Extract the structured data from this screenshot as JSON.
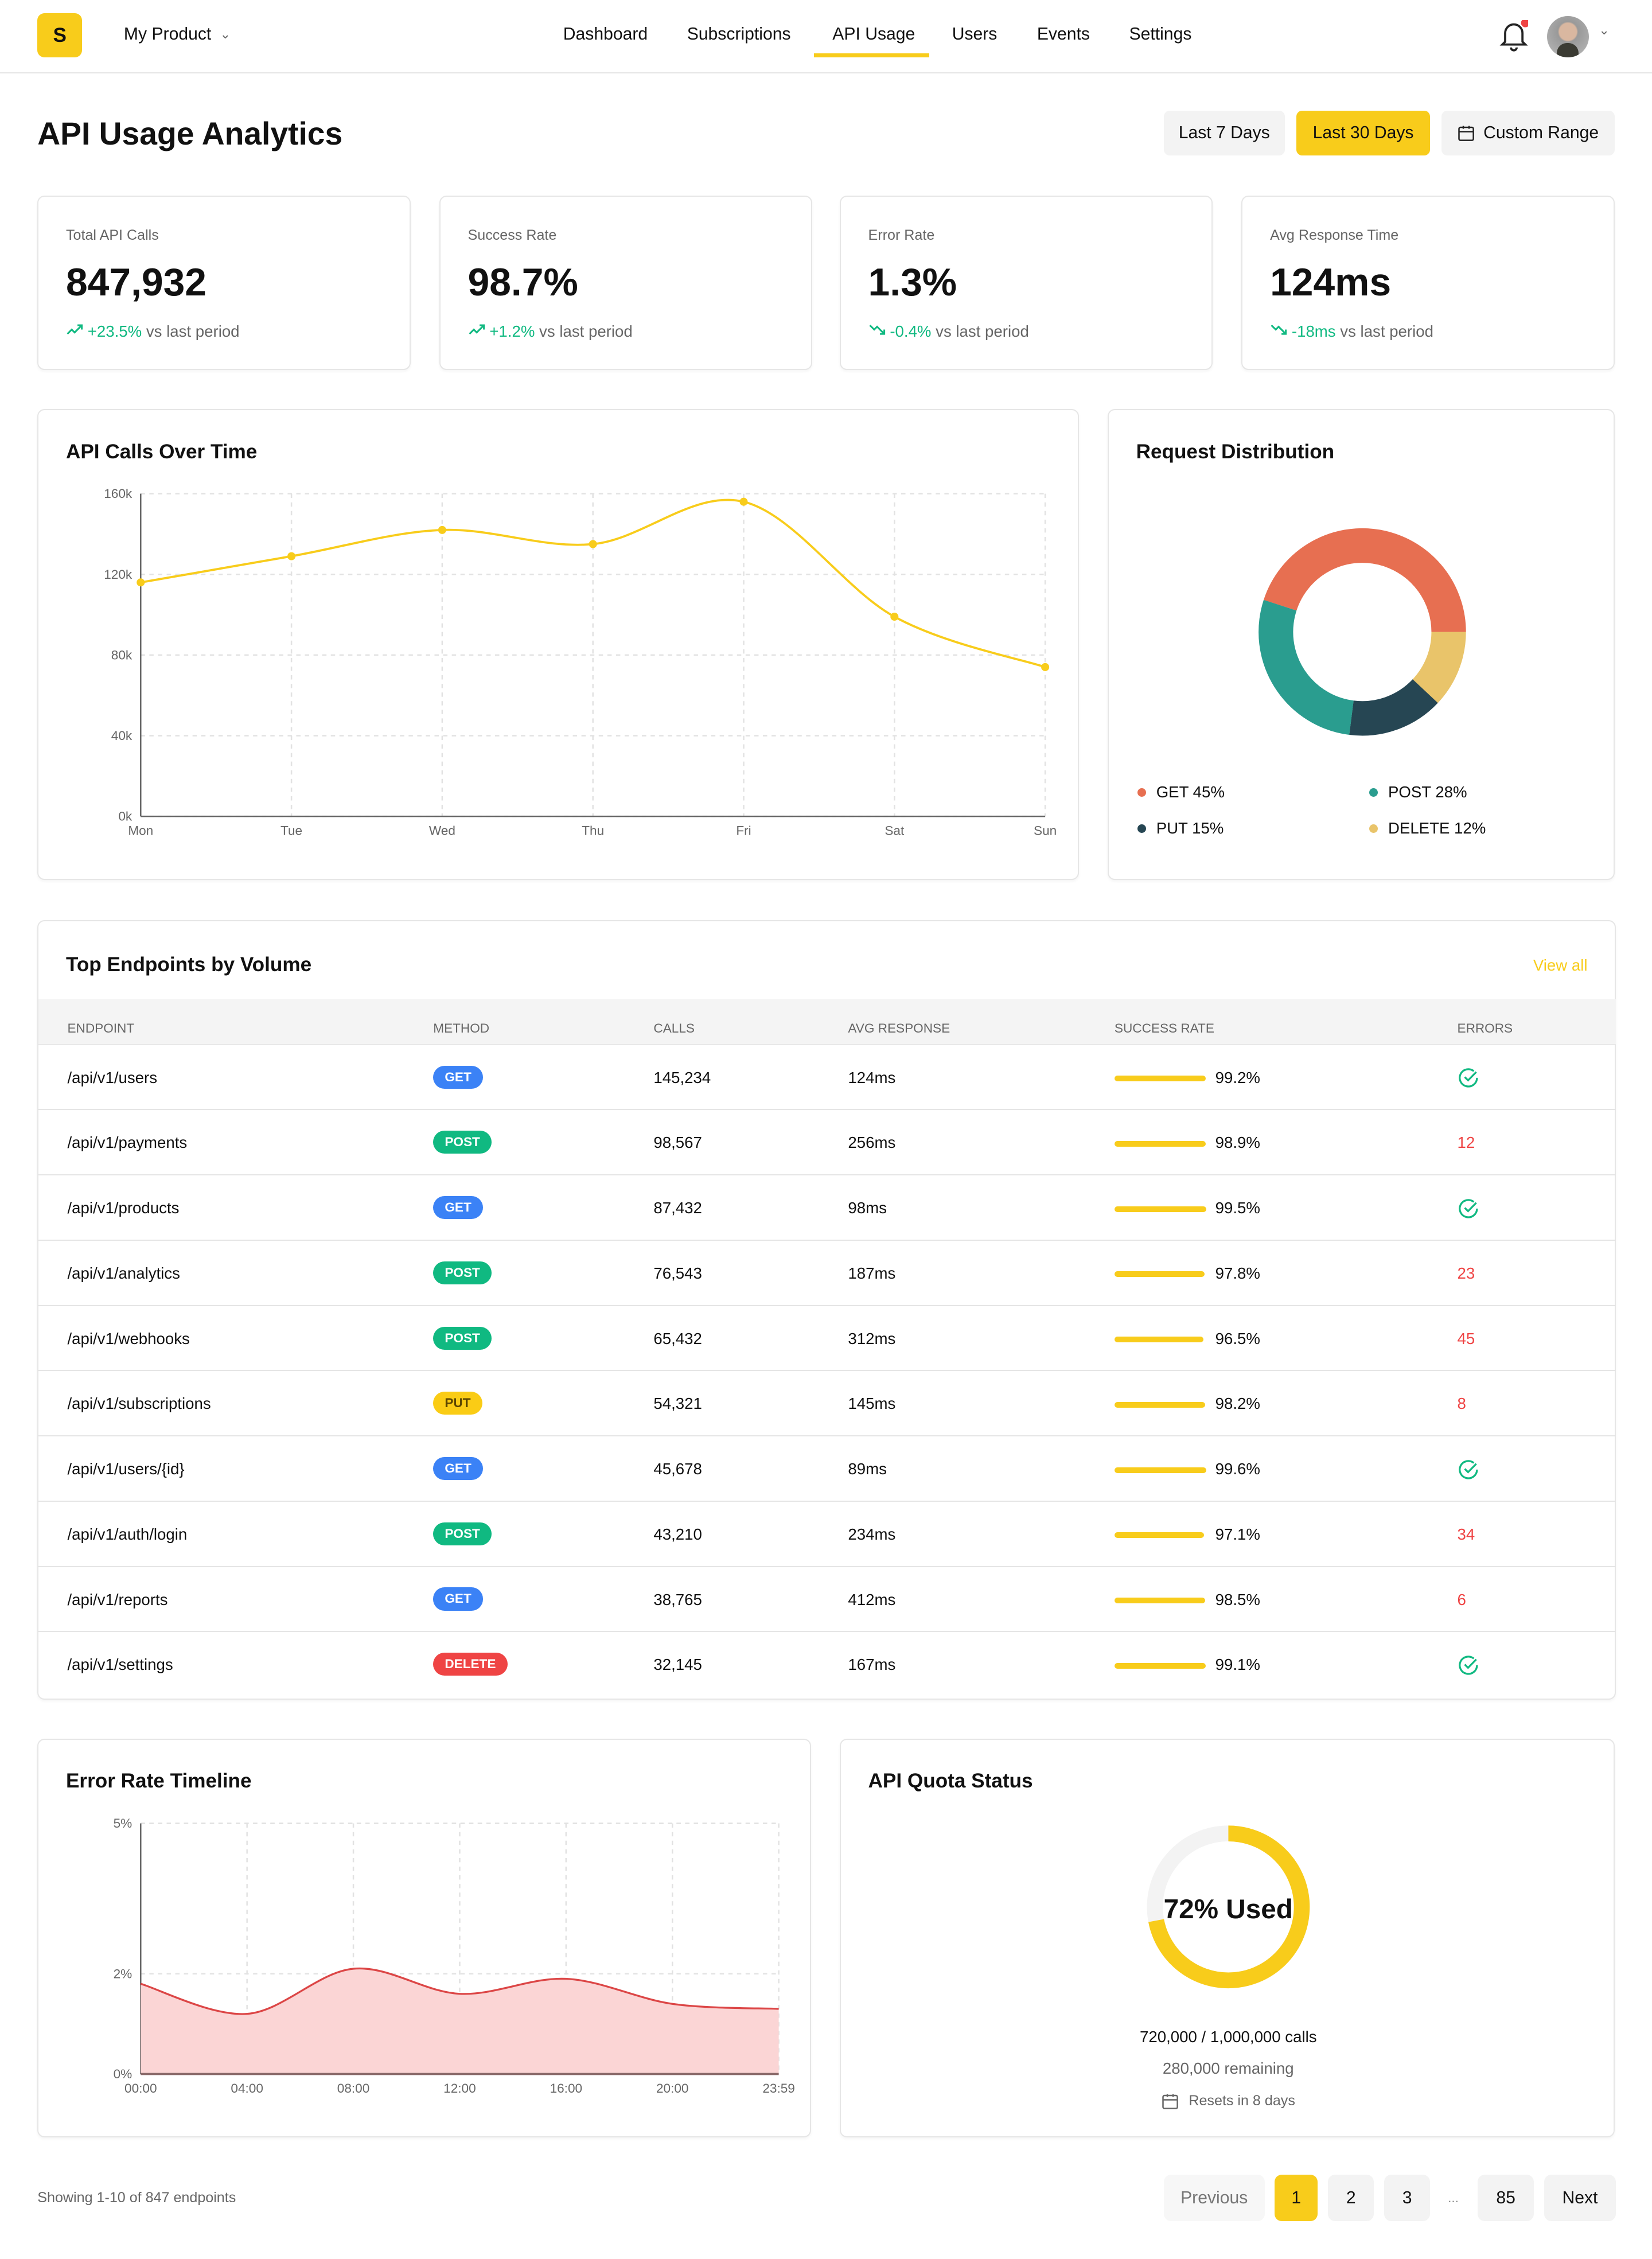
{
  "header": {
    "logo": "S",
    "product": "My Product",
    "nav": [
      "Dashboard",
      "Subscriptions",
      "API Usage",
      "Users",
      "Events",
      "Settings"
    ],
    "active_nav": "API Usage",
    "notification_dot_color": "#ef4444"
  },
  "page": {
    "title": "API Usage Analytics",
    "ranges": [
      "Last 7 Days",
      "Last 30 Days",
      "Custom Range"
    ],
    "active_range": "Last 30 Days"
  },
  "stats": [
    {
      "label": "Total API Calls",
      "value": "847,932",
      "change": "+23.5%",
      "suffix": "vs last period",
      "trend": "up"
    },
    {
      "label": "Success Rate",
      "value": "98.7%",
      "change": "+1.2%",
      "suffix": "vs last period",
      "trend": "up"
    },
    {
      "label": "Error Rate",
      "value": "1.3%",
      "change": "-0.4%",
      "suffix": "vs last period",
      "trend": "down"
    },
    {
      "label": "Avg Response Time",
      "value": "124ms",
      "change": "-18ms",
      "suffix": "vs last period",
      "trend": "down"
    }
  ],
  "chart_data": [
    {
      "type": "line",
      "title": "API Calls Over Time",
      "categories": [
        "Mon",
        "Tue",
        "Wed",
        "Thu",
        "Fri",
        "Sat",
        "Sun"
      ],
      "values": [
        116000,
        129000,
        142000,
        135000,
        156000,
        99000,
        74000
      ],
      "yticks": [
        "0k",
        "40k",
        "80k",
        "120k",
        "160k"
      ],
      "ylim": [
        0,
        160000
      ],
      "grid": true,
      "color": "#f8cc1b"
    },
    {
      "type": "pie",
      "title": "Request Distribution",
      "donut": true,
      "slices": [
        {
          "name": "GET",
          "value": 45,
          "label": "GET 45%",
          "color": "#e76f51"
        },
        {
          "name": "DELETE",
          "value": 12,
          "label": "DELETE 12%",
          "color": "#e9c46a"
        },
        {
          "name": "PUT",
          "value": 15,
          "label": "PUT 15%",
          "color": "#264653"
        },
        {
          "name": "POST",
          "value": 28,
          "label": "POST 28%",
          "color": "#2a9d8f"
        }
      ]
    },
    {
      "type": "area",
      "title": "Error Rate Timeline",
      "categories": [
        "00:00",
        "04:00",
        "08:00",
        "12:00",
        "16:00",
        "20:00",
        "23:59"
      ],
      "values": [
        1.8,
        1.2,
        2.1,
        1.6,
        1.9,
        1.4,
        1.3
      ],
      "yticks": [
        "0%",
        "2%",
        "5%"
      ],
      "ylim": [
        0,
        5
      ],
      "grid": true,
      "color": "#dc4646"
    }
  ],
  "table": {
    "title": "Top Endpoints by Volume",
    "view_all": "View all",
    "columns": [
      "ENDPOINT",
      "METHOD",
      "CALLS",
      "AVG RESPONSE",
      "SUCCESS RATE",
      "ERRORS"
    ],
    "rows": [
      {
        "endpoint": "/api/v1/users",
        "method": "GET",
        "calls": "145,234",
        "avg": "124ms",
        "success": "99.2%",
        "errors": ""
      },
      {
        "endpoint": "/api/v1/payments",
        "method": "POST",
        "calls": "98,567",
        "avg": "256ms",
        "success": "98.9%",
        "errors": "12"
      },
      {
        "endpoint": "/api/v1/products",
        "method": "GET",
        "calls": "87,432",
        "avg": "98ms",
        "success": "99.5%",
        "errors": ""
      },
      {
        "endpoint": "/api/v1/analytics",
        "method": "POST",
        "calls": "76,543",
        "avg": "187ms",
        "success": "97.8%",
        "errors": "23"
      },
      {
        "endpoint": "/api/v1/webhooks",
        "method": "POST",
        "calls": "65,432",
        "avg": "312ms",
        "success": "96.5%",
        "errors": "45"
      },
      {
        "endpoint": "/api/v1/subscriptions",
        "method": "PUT",
        "calls": "54,321",
        "avg": "145ms",
        "success": "98.2%",
        "errors": "8"
      },
      {
        "endpoint": "/api/v1/users/{id}",
        "method": "GET",
        "calls": "45,678",
        "avg": "89ms",
        "success": "99.6%",
        "errors": ""
      },
      {
        "endpoint": "/api/v1/auth/login",
        "method": "POST",
        "calls": "43,210",
        "avg": "234ms",
        "success": "97.1%",
        "errors": "34"
      },
      {
        "endpoint": "/api/v1/reports",
        "method": "GET",
        "calls": "38,765",
        "avg": "412ms",
        "success": "98.5%",
        "errors": "6"
      },
      {
        "endpoint": "/api/v1/settings",
        "method": "DELETE",
        "calls": "32,145",
        "avg": "167ms",
        "success": "99.1%",
        "errors": ""
      }
    ],
    "method_colors": {
      "GET": "#3b82f6",
      "POST": "#10b981",
      "PUT": "#facc15",
      "DELETE": "#ef4444"
    }
  },
  "quota": {
    "title": "API Quota Status",
    "percent_used": 72,
    "label": "72% Used",
    "usage": "720,000 / 1,000,000 calls",
    "remaining": "280,000 remaining",
    "resets": "Resets in 8 days"
  },
  "footer": {
    "showing": "Showing 1-10 of 847 endpoints",
    "previous": "Previous",
    "pages": [
      "1",
      "2",
      "3",
      "...",
      "85"
    ],
    "active_page": "1",
    "next": "Next"
  }
}
